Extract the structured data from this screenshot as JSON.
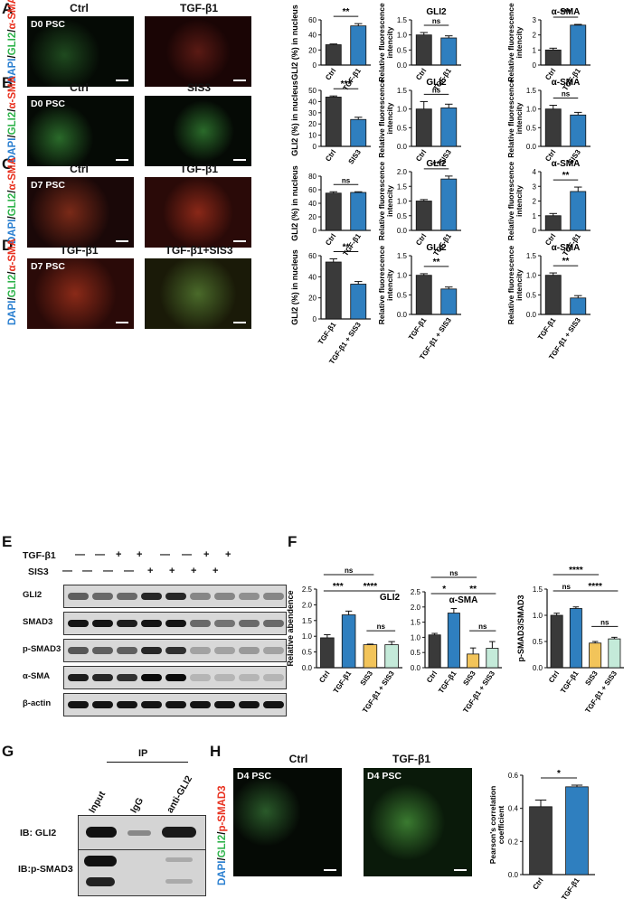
{
  "panel_letters": {
    "A": "A",
    "B": "B",
    "C": "C",
    "D": "D",
    "E": "E",
    "F": "F",
    "G": "G",
    "H": "H"
  },
  "stain": {
    "dapi": "DAPI",
    "sep1": "/",
    "gli2": "GLI2",
    "sep2": "/",
    "asma": "α-SMA",
    "psmad3": "p-SMAD3"
  },
  "rows": [
    {
      "tag": "D0 PSC",
      "left": "Ctrl",
      "right": "TGF-β1"
    },
    {
      "tag": "D0 PSC",
      "left": "Ctrl",
      "right": "SIS3"
    },
    {
      "tag": "D7 PSC",
      "left": "Ctrl",
      "right": "TGF-β1"
    },
    {
      "tag": "D7 PSC",
      "left": "TGF-β1",
      "right": "TGF-β1+SIS3"
    }
  ],
  "western": {
    "treat_labels": [
      "TGF-β1",
      "SIS3"
    ],
    "tgf_signs": [
      "—",
      "—",
      "+",
      "+",
      "—",
      "—",
      "+",
      "+"
    ],
    "sis3_signs": [
      "—",
      "—",
      "—",
      "—",
      "+",
      "+",
      "+",
      "+"
    ],
    "bands": [
      "GLI2",
      "SMAD3",
      "p-SMAD3",
      "α-SMA",
      "β-actin"
    ]
  },
  "ip": {
    "header": "IP",
    "lanes": [
      "Input",
      "IgG",
      "anti-GLI2"
    ],
    "rows": [
      "IB: GLI2",
      "IB:p-SMAD3"
    ]
  },
  "panelH": {
    "tag": "D4 PSC",
    "left": "Ctrl",
    "right": "TGF-β1"
  },
  "colors": {
    "dark": "#3a3a3a",
    "blue": "#2f7fbf",
    "yellow": "#f2c45a",
    "mint": "#c4ead9",
    "red": "#e8301e",
    "green": "#2db34a",
    "dapi": "#2a7fd0"
  },
  "chart_data": [
    {
      "id": "A1",
      "type": "bar",
      "categories": [
        "Ctrl",
        "TGF-β1"
      ],
      "values": [
        27,
        52
      ],
      "errors": [
        1,
        3
      ],
      "title": "",
      "ylabel": "GLI2 (%) in nucleus",
      "ylim": [
        0,
        60
      ],
      "ticks": [
        0,
        20,
        40,
        60
      ],
      "sig": [
        {
          "a": 0,
          "b": 1,
          "text": "**"
        }
      ]
    },
    {
      "id": "A2",
      "type": "bar",
      "categories": [
        "Ctrl",
        "TGF-β1"
      ],
      "values": [
        1.0,
        0.9
      ],
      "errors": [
        0.08,
        0.07
      ],
      "title": "GLI2",
      "ylabel": "Relative fluorescence intencity",
      "ylim": [
        0,
        1.5
      ],
      "ticks": [
        0.0,
        0.5,
        1.0,
        1.5
      ],
      "sig": [
        {
          "a": 0,
          "b": 1,
          "text": "ns"
        }
      ]
    },
    {
      "id": "A3",
      "type": "bar",
      "categories": [
        "Ctrl",
        "TGF-β1"
      ],
      "values": [
        1.0,
        2.65
      ],
      "errors": [
        0.12,
        0.05
      ],
      "title": "α-SMA",
      "ylabel": "Relative fluorescence intencity",
      "ylim": [
        0,
        3
      ],
      "ticks": [
        0,
        1,
        2,
        3
      ],
      "sig": [
        {
          "a": 0,
          "b": 1,
          "text": "***"
        }
      ]
    },
    {
      "id": "B1",
      "type": "bar",
      "categories": [
        "Ctrl",
        "SIS3"
      ],
      "values": [
        44,
        24
      ],
      "errors": [
        1,
        2
      ],
      "title": "",
      "ylabel": "GLI2 (%) in nucleus",
      "ylim": [
        0,
        50
      ],
      "ticks": [
        0,
        10,
        20,
        30,
        40,
        50
      ],
      "sig": [
        {
          "a": 0,
          "b": 1,
          "text": "***"
        }
      ]
    },
    {
      "id": "B2",
      "type": "bar",
      "categories": [
        "Ctrl",
        "SIS3"
      ],
      "values": [
        1.0,
        1.03
      ],
      "errors": [
        0.2,
        0.1
      ],
      "title": "GLI2",
      "ylabel": "Relative fluorescence intencity",
      "ylim": [
        0,
        1.5
      ],
      "ticks": [
        0.0,
        0.5,
        1.0,
        1.5
      ],
      "sig": [
        {
          "a": 0,
          "b": 1,
          "text": "ns"
        }
      ]
    },
    {
      "id": "B3",
      "type": "bar",
      "categories": [
        "Ctrl",
        "SIS3"
      ],
      "values": [
        1.0,
        0.84
      ],
      "errors": [
        0.1,
        0.07
      ],
      "title": "α-SMA",
      "ylabel": "Relative fluorescence intencity",
      "ylim": [
        0,
        1.5
      ],
      "ticks": [
        0.0,
        0.5,
        1.0,
        1.5
      ],
      "sig": [
        {
          "a": 0,
          "b": 1,
          "text": "ns"
        }
      ]
    },
    {
      "id": "C1",
      "type": "bar",
      "categories": [
        "Ctrl",
        "TGF-β1"
      ],
      "values": [
        55,
        56
      ],
      "errors": [
        2,
        1
      ],
      "title": "",
      "ylabel": "GLI2 (%) in nucleus",
      "ylim": [
        0,
        80
      ],
      "ticks": [
        0,
        20,
        40,
        60,
        80
      ],
      "sig": [
        {
          "a": 0,
          "b": 1,
          "text": "ns"
        }
      ]
    },
    {
      "id": "C2",
      "type": "bar",
      "categories": [
        "Ctrl",
        "TGF-β1"
      ],
      "values": [
        1.0,
        1.75
      ],
      "errors": [
        0.05,
        0.1
      ],
      "title": "GLI2",
      "ylabel": "Relative fluorescence intencity",
      "ylim": [
        0,
        2
      ],
      "ticks": [
        0.0,
        0.5,
        1.0,
        1.5,
        2.0
      ],
      "sig": [
        {
          "a": 0,
          "b": 1,
          "text": "**"
        }
      ]
    },
    {
      "id": "C3",
      "type": "bar",
      "categories": [
        "Ctrl",
        "TGF-β1"
      ],
      "values": [
        1.0,
        2.65
      ],
      "errors": [
        0.15,
        0.3
      ],
      "title": "α-SMA",
      "ylabel": "Relative fluorescence intencity",
      "ylim": [
        0,
        4
      ],
      "ticks": [
        0,
        1,
        2,
        3,
        4
      ],
      "sig": [
        {
          "a": 0,
          "b": 1,
          "text": "**"
        }
      ]
    },
    {
      "id": "D1",
      "type": "bar",
      "categories": [
        "TGF-β1",
        "TGF-β1 + SIS3"
      ],
      "values": [
        54,
        33
      ],
      "errors": [
        3,
        2.5
      ],
      "title": "",
      "ylabel": "GLI2 (%) in nucleus",
      "ylim": [
        0,
        60
      ],
      "ticks": [
        0,
        20,
        40,
        60
      ],
      "sig": [
        {
          "a": 0,
          "b": 1,
          "text": "**"
        }
      ]
    },
    {
      "id": "D2",
      "type": "bar",
      "categories": [
        "TGF-β1",
        "TGF-β1 + SIS3"
      ],
      "values": [
        1.0,
        0.65
      ],
      "errors": [
        0.04,
        0.05
      ],
      "title": "GLI2",
      "ylabel": "Relative fluorescence intencity",
      "ylim": [
        0,
        1.5
      ],
      "ticks": [
        0.0,
        0.5,
        1.0,
        1.5
      ],
      "sig": [
        {
          "a": 0,
          "b": 1,
          "text": "**"
        }
      ]
    },
    {
      "id": "D3",
      "type": "bar",
      "categories": [
        "TGF-β1",
        "TGF-β1 + SIS3"
      ],
      "values": [
        1.0,
        0.42
      ],
      "errors": [
        0.06,
        0.06
      ],
      "title": "α-SMA",
      "ylabel": "Relative fluorescence intencity",
      "ylim": [
        0,
        1.5
      ],
      "ticks": [
        0.0,
        0.5,
        1.0,
        1.5
      ],
      "sig": [
        {
          "a": 0,
          "b": 1,
          "text": "**"
        }
      ]
    },
    {
      "id": "F1",
      "type": "bar",
      "categories": [
        "Ctrl",
        "TGF-β1",
        "SIS3",
        "TGF-β1 + SIS3"
      ],
      "values": [
        0.95,
        1.68,
        0.73,
        0.73
      ],
      "errors": [
        0.1,
        0.12,
        0.02,
        0.1
      ],
      "title": "GLI2",
      "ylabel": "Relative abendence",
      "ylim": [
        0,
        2.5
      ],
      "ticks": [
        0.0,
        0.5,
        1.0,
        1.5,
        2.0,
        2.5
      ],
      "sig": [
        {
          "a": 0,
          "b": 1,
          "text": "***"
        },
        {
          "a": 1,
          "b": 3,
          "text": "****"
        },
        {
          "a": 0,
          "b": 2,
          "text": "ns"
        },
        {
          "a": 2,
          "b": 3,
          "text": "ns"
        }
      ]
    },
    {
      "id": "F2",
      "type": "bar",
      "categories": [
        "Ctrl",
        "TGF-β1",
        "SIS3",
        "TGF-β1 + SIS3"
      ],
      "values": [
        1.08,
        1.8,
        0.45,
        0.64
      ],
      "errors": [
        0.05,
        0.15,
        0.2,
        0.22
      ],
      "title": "α-SMA",
      "ylabel": "",
      "ylim": [
        0,
        2.5
      ],
      "ticks": [
        0.0,
        0.5,
        1.0,
        1.5,
        2.0,
        2.5
      ],
      "sig": [
        {
          "a": 0,
          "b": 1,
          "text": "*"
        },
        {
          "a": 1,
          "b": 3,
          "text": "**"
        },
        {
          "a": 0,
          "b": 2,
          "text": "ns"
        },
        {
          "a": 2,
          "b": 3,
          "text": "ns"
        }
      ]
    },
    {
      "id": "F3",
      "type": "bar",
      "categories": [
        "Ctrl",
        "TGF-β1",
        "SIS3",
        "TGF-β1 + SIS3"
      ],
      "values": [
        1.0,
        1.13,
        0.47,
        0.55
      ],
      "errors": [
        0.04,
        0.03,
        0.03,
        0.03
      ],
      "title": "",
      "ylabel": "p-SMAD3/SMAD3",
      "ylim": [
        0,
        1.5
      ],
      "ticks": [
        0.0,
        0.5,
        1.0,
        1.5
      ],
      "sig": [
        {
          "a": 0,
          "b": 1,
          "text": "ns"
        },
        {
          "a": 1,
          "b": 3,
          "text": "****"
        },
        {
          "a": 0,
          "b": 2,
          "text": "****"
        },
        {
          "a": 2,
          "b": 3,
          "text": "ns"
        }
      ]
    },
    {
      "id": "H1",
      "type": "bar",
      "categories": [
        "Ctrl",
        "TGF-β1"
      ],
      "values": [
        0.41,
        0.53
      ],
      "errors": [
        0.04,
        0.01
      ],
      "title": "",
      "ylabel": "Pearson's correlation coefficient",
      "ylim": [
        0,
        0.6
      ],
      "ticks": [
        0.0,
        0.2,
        0.4,
        0.6
      ],
      "sig": [
        {
          "a": 0,
          "b": 1,
          "text": "*"
        }
      ]
    }
  ]
}
